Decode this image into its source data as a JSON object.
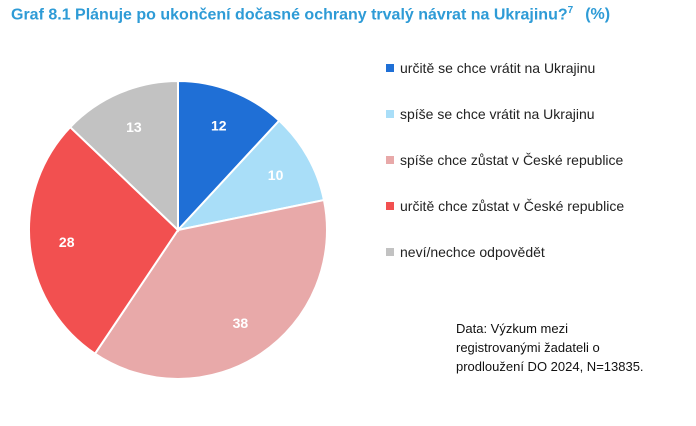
{
  "title": {
    "text": "Graf 8.1 Plánuje po ukončení dočasné ochrany trvalý návrat na Ukrajinu?",
    "footnote": "7",
    "unit": "(%)"
  },
  "source": "Data: Výzkum mezi registrovanými žadateli o prodloužení DO 2024, N=13835.",
  "chart_data": {
    "type": "pie",
    "title": "Graf 8.1 Plánuje po ukončení dočasné ochrany trvalý návrat na Ukrajinu?",
    "categories": [
      "určitě se chce vrátit na Ukrajinu",
      "spíše se chce vrátit na Ukrajinu",
      "spíše chce zůstat v České republice",
      "určitě chce zůstat v České republice",
      "neví/nechce odpovědět"
    ],
    "values": [
      12,
      10,
      38,
      28,
      13
    ],
    "labels": [
      "12",
      "10",
      "38",
      "28",
      "13"
    ],
    "colors": [
      "#1f6fd6",
      "#a9def8",
      "#e8a9a9",
      "#f25050",
      "#c2c2c2"
    ],
    "label_colors": [
      "#ffffff",
      "#ffffff",
      "#ffffff",
      "#ffffff",
      "#ffffff"
    ],
    "legend_position": "right",
    "start_angle": "12 o'clock, clockwise"
  }
}
